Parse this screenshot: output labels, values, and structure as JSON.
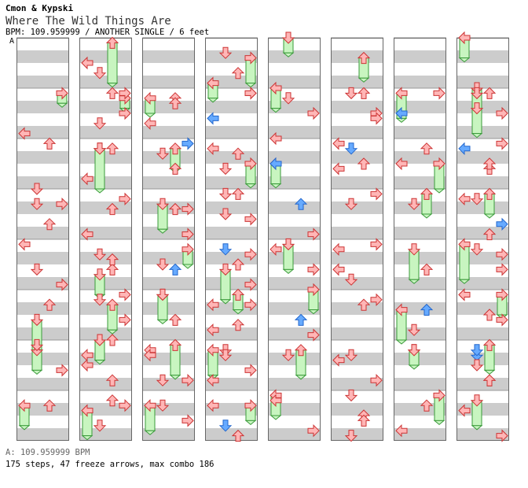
{
  "header": {
    "artist": "Cmon & Kypski",
    "title": "Where The Wild Things Are",
    "info": "BPM: 109.959999 / ANOTHER SINGLE / 6 feet",
    "bpm_tag": "A"
  },
  "footer": {
    "bpm_line": "A: 109.959999 BPM",
    "stats": "175 steps, 47 freeze arrows, max combo 186"
  },
  "colors": {
    "arrow_red": "#ffb6b6",
    "arrow_blue": "#66aaff",
    "freeze_green": "#c8f5c0",
    "stripe_gray": "#cccccc"
  },
  "chart_data": {
    "type": "step-chart",
    "columns": 8,
    "measures_per_column": 8,
    "lanes": [
      "left",
      "down",
      "up",
      "right"
    ],
    "notes": [
      [
        2,
        0.1,
        2,
        "r"
      ],
      [
        3,
        0.3,
        1,
        "r"
      ],
      [
        3,
        0.7,
        2,
        "r"
      ],
      [
        4,
        0.9,
        3,
        "r"
      ],
      [
        1,
        0.9,
        0,
        "r"
      ],
      [
        6,
        0.1,
        1,
        "r"
      ],
      [
        7,
        0.3,
        2,
        "r"
      ],
      [
        8,
        0.5,
        0,
        "r"
      ],
      [
        8,
        0.7,
        1,
        "r"
      ],
      [
        9,
        0.1,
        2,
        "r"
      ],
      [
        9,
        0.5,
        3,
        "r"
      ],
      [
        10,
        0.2,
        1,
        "r"
      ],
      [
        10,
        0.8,
        0,
        "r"
      ],
      [
        11,
        0.4,
        2,
        "r"
      ],
      [
        11,
        0.9,
        0,
        "r"
      ],
      [
        12,
        0.3,
        1,
        "r"
      ],
      [
        12,
        0.6,
        2,
        "r"
      ],
      [
        13,
        0.1,
        3,
        "r"
      ],
      [
        14,
        0.0,
        2,
        "r"
      ],
      [
        14,
        0.5,
        0,
        "r"
      ],
      [
        15,
        0.2,
        2,
        "r"
      ],
      [
        15,
        0.7,
        1,
        "r"
      ],
      [
        17,
        0.2,
        2,
        "r"
      ],
      [
        18,
        0.3,
        1,
        "r"
      ],
      [
        19,
        0.4,
        2,
        "r"
      ],
      [
        19,
        0.9,
        3,
        "r"
      ],
      [
        20,
        0.5,
        1,
        "r"
      ],
      [
        21,
        0.6,
        2,
        "r"
      ],
      [
        22,
        0.2,
        0,
        "r"
      ],
      [
        22,
        0.8,
        1,
        "r"
      ],
      [
        23,
        0.6,
        3,
        "r"
      ],
      [
        24,
        0.3,
        1,
        "r"
      ],
      [
        24,
        0.7,
        2,
        "r"
      ],
      [
        25,
        0.1,
        3,
        "r"
      ],
      [
        26,
        0.2,
        0,
        "r"
      ],
      [
        26,
        0.6,
        1,
        "r"
      ],
      [
        27,
        0.1,
        1,
        "r"
      ],
      [
        27,
        0.6,
        3,
        "r"
      ],
      [
        28,
        0.2,
        1,
        "b"
      ],
      [
        28,
        0.5,
        2,
        "r"
      ],
      [
        28,
        0.9,
        3,
        "r"
      ],
      [
        29,
        0.3,
        3,
        "r"
      ],
      [
        29,
        0.8,
        0,
        "r"
      ],
      [
        30,
        0.2,
        1,
        "r"
      ],
      [
        30,
        0.6,
        3,
        "r"
      ],
      [
        31,
        0.3,
        0,
        "r"
      ],
      [
        31,
        0.7,
        1,
        "b"
      ],
      [
        31,
        0.9,
        2,
        "r"
      ],
      [
        33,
        0.2,
        1,
        "r"
      ],
      [
        33,
        0.5,
        3,
        "r"
      ],
      [
        34,
        0.0,
        0,
        "r"
      ],
      [
        34,
        0.5,
        0,
        "b"
      ],
      [
        35,
        0.3,
        2,
        "b"
      ],
      [
        35,
        0.9,
        3,
        "r"
      ],
      [
        36,
        0.2,
        0,
        "r"
      ],
      [
        36,
        0.6,
        3,
        "r"
      ],
      [
        37,
        0.6,
        2,
        "b"
      ],
      [
        37,
        0.9,
        3,
        "r"
      ],
      [
        38,
        0.3,
        1,
        "r"
      ],
      [
        39,
        0.2,
        0,
        "r"
      ],
      [
        39,
        0.8,
        3,
        "r"
      ],
      [
        41,
        0.1,
        2,
        "r"
      ],
      [
        41,
        0.5,
        3,
        "r"
      ],
      [
        42,
        0.2,
        1,
        "b"
      ],
      [
        42,
        0.6,
        0,
        "r"
      ],
      [
        43,
        0.3,
        1,
        "r"
      ],
      [
        44,
        0.1,
        3,
        "r"
      ],
      [
        44,
        0.6,
        0,
        "r"
      ],
      [
        45,
        0.2,
        3,
        "r"
      ],
      [
        46,
        0.3,
        1,
        "r"
      ],
      [
        47,
        0.5,
        2,
        "r"
      ],
      [
        47,
        0.9,
        1,
        "r"
      ],
      [
        49,
        0.1,
        3,
        "r"
      ],
      [
        49,
        0.5,
        0,
        "b"
      ],
      [
        50,
        0.2,
        2,
        "r"
      ],
      [
        50,
        0.5,
        0,
        "r"
      ],
      [
        51,
        0.3,
        1,
        "r"
      ],
      [
        52,
        0.6,
        2,
        "r"
      ],
      [
        53,
        0.4,
        2,
        "b"
      ],
      [
        53,
        0.8,
        1,
        "r"
      ],
      [
        54,
        0.2,
        1,
        "r"
      ],
      [
        55,
        0.3,
        2,
        "r"
      ],
      [
        55,
        0.8,
        0,
        "r"
      ],
      [
        57,
        0.1,
        1,
        "r"
      ],
      [
        57,
        0.5,
        3,
        "r"
      ],
      [
        58,
        0.2,
        0,
        "b"
      ],
      [
        58,
        0.6,
        2,
        "r"
      ],
      [
        59,
        0.2,
        1,
        "r"
      ],
      [
        59,
        0.9,
        2,
        "r"
      ],
      [
        60,
        0.3,
        3,
        "r"
      ],
      [
        61,
        0.1,
        0,
        "r"
      ],
      [
        61,
        0.6,
        3,
        "r"
      ],
      [
        62,
        0.3,
        1,
        "b"
      ],
      [
        62,
        0.8,
        2,
        "r"
      ],
      [
        63,
        0.4,
        0,
        "r"
      ],
      [
        63,
        0.9,
        3,
        "r"
      ]
    ],
    "freezes": [
      [
        1,
        0.1,
        0.3,
        3
      ],
      [
        5,
        0.6,
        1.2,
        1
      ],
      [
        6,
        0.2,
        0.6,
        1
      ],
      [
        7,
        0.3,
        0.7,
        0
      ],
      [
        8,
        0.1,
        0.9,
        2
      ],
      [
        9,
        0.2,
        0.4,
        3
      ],
      [
        10,
        0.2,
        1.0,
        1
      ],
      [
        12,
        0.7,
        1.1,
        1
      ],
      [
        13,
        0.3,
        0.8,
        2
      ],
      [
        14,
        0.0,
        0.4,
        1
      ],
      [
        15,
        0.4,
        0.9,
        0
      ],
      [
        17,
        0.2,
        0.5,
        0
      ],
      [
        18,
        0.2,
        0.6,
        2
      ],
      [
        19,
        0.3,
        0.8,
        1
      ],
      [
        20,
        0.2,
        0.5,
        3
      ],
      [
        21,
        0.1,
        0.6,
        1
      ],
      [
        22,
        0.1,
        0.7,
        2
      ],
      [
        23,
        0.3,
        0.8,
        0
      ],
      [
        24,
        0.4,
        0.9,
        3
      ],
      [
        33,
        0.0,
        0.4,
        0
      ],
      [
        34,
        0.5,
        0.9,
        0
      ],
      [
        36,
        0.1,
        0.6,
        1
      ],
      [
        37,
        0.0,
        0.4,
        3
      ],
      [
        38,
        0.2,
        0.7,
        2
      ],
      [
        39,
        0.1,
        0.5,
        0
      ],
      [
        49,
        0.1,
        0.6,
        0
      ],
      [
        50,
        0.5,
        1.0,
        3
      ],
      [
        51,
        0.1,
        0.5,
        2
      ],
      [
        52,
        0.2,
        0.8,
        1
      ],
      [
        53,
        0.4,
        1.0,
        0
      ],
      [
        54,
        0.2,
        0.5,
        1
      ],
      [
        55,
        0.1,
        0.6,
        3
      ],
      [
        56,
        0.0,
        0.4,
        0
      ],
      [
        57,
        0.0,
        0.9,
        1
      ],
      [
        59,
        0.1,
        0.5,
        2
      ],
      [
        60,
        0.1,
        0.8,
        0
      ],
      [
        61,
        0.1,
        0.5,
        3
      ],
      [
        62,
        0.1,
        0.6,
        2
      ],
      [
        63,
        0.2,
        0.7,
        1
      ],
      [
        24,
        0.9,
        1.2,
        0
      ],
      [
        26,
        0.5,
        0.9,
        3
      ],
      [
        28,
        0.6,
        1.2,
        1
      ],
      [
        29,
        0.1,
        0.4,
        2
      ],
      [
        30,
        0.2,
        0.7,
        0
      ],
      [
        31,
        0.3,
        0.6,
        3
      ],
      [
        32,
        0.0,
        0.3,
        1
      ],
      [
        40,
        0.4,
        0.8,
        2
      ]
    ],
    "cells": [
      [
        2,
        1,
        1,
        "r"
      ],
      [
        3,
        0.3,
        3,
        "r"
      ],
      [
        4,
        0.1,
        0,
        "r"
      ],
      [
        4,
        0.6,
        1,
        "r"
      ],
      [
        5,
        0.3,
        2,
        "r"
      ],
      [
        6,
        0.6,
        3,
        "r"
      ],
      [
        9,
        0.1,
        3,
        "r"
      ],
      [
        9,
        0.7,
        1,
        "r"
      ],
      [
        10,
        0.2,
        2,
        "r"
      ],
      [
        11,
        0.2,
        3,
        "r"
      ],
      [
        12,
        0.4,
        2,
        "r"
      ],
      [
        13,
        0.2,
        1,
        "r"
      ],
      [
        13,
        0.6,
        3,
        "r"
      ],
      [
        14,
        0.3,
        0,
        "r"
      ],
      [
        14,
        0.8,
        2,
        "r"
      ],
      [
        15,
        0.3,
        3,
        "r"
      ],
      [
        17,
        0.3,
        2,
        "r"
      ],
      [
        17,
        0.7,
        0,
        "r"
      ],
      [
        18,
        0.1,
        3,
        "b"
      ],
      [
        18,
        0.6,
        2,
        "r"
      ],
      [
        19,
        0.4,
        3,
        "r"
      ],
      [
        20,
        0.6,
        2,
        "b"
      ],
      [
        21,
        0.1,
        1,
        "r"
      ],
      [
        22,
        0.3,
        0,
        "r"
      ],
      [
        22,
        0.8,
        3,
        "r"
      ],
      [
        23,
        0.3,
        1,
        "r"
      ],
      [
        25,
        0.1,
        3,
        "r"
      ],
      [
        25,
        0.6,
        0,
        "b"
      ],
      [
        26,
        0.3,
        2,
        "r"
      ],
      [
        27,
        0.1,
        2,
        "r"
      ],
      [
        27,
        0.5,
        1,
        "r"
      ],
      [
        28,
        0.3,
        3,
        "r"
      ],
      [
        29,
        0.3,
        0,
        "r"
      ],
      [
        29,
        0.7,
        2,
        "r"
      ],
      [
        30,
        0.3,
        1,
        "r"
      ],
      [
        30,
        0.8,
        0,
        "r"
      ],
      [
        41,
        0.1,
        1,
        "r"
      ],
      [
        41,
        0.6,
        3,
        "r"
      ],
      [
        42,
        0.1,
        0,
        "r"
      ],
      [
        42,
        0.5,
        2,
        "r"
      ],
      [
        43,
        0.1,
        3,
        "r"
      ],
      [
        44,
        0.2,
        0,
        "r"
      ],
      [
        44,
        0.8,
        1,
        "r"
      ],
      [
        45,
        0.3,
        2,
        "r"
      ],
      [
        46,
        0.4,
        0,
        "r"
      ],
      [
        46,
        0.8,
        3,
        "r"
      ],
      [
        47,
        0.1,
        1,
        "r"
      ],
      [
        47,
        0.6,
        2,
        "r"
      ],
      [
        57,
        0.1,
        2,
        "r"
      ],
      [
        57,
        0.4,
        1,
        "r"
      ],
      [
        58,
        0.1,
        3,
        "r"
      ],
      [
        58,
        0.5,
        2,
        "r"
      ],
      [
        59,
        0.2,
        0,
        "r"
      ],
      [
        59,
        0.7,
        3,
        "b"
      ],
      [
        60,
        0.2,
        1,
        "r"
      ],
      [
        60,
        0.6,
        3,
        "r"
      ],
      [
        61,
        0.1,
        0,
        "r"
      ],
      [
        61,
        0.5,
        2,
        "r"
      ],
      [
        62,
        0.2,
        1,
        "b"
      ],
      [
        62,
        0.5,
        1,
        "r"
      ],
      [
        62,
        0.8,
        2,
        "r"
      ]
    ]
  }
}
